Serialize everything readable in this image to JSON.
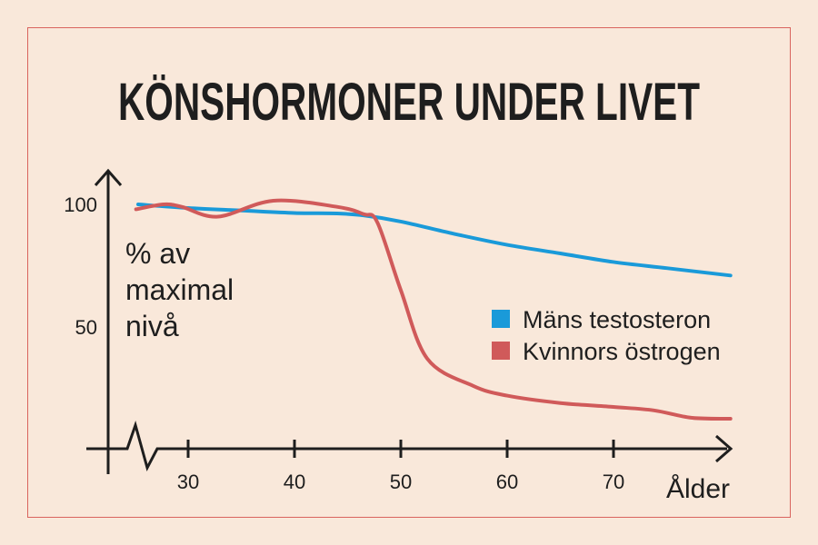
{
  "chart_data": {
    "type": "line",
    "title": "KÖNSHORMONER UNDER LIVET",
    "ylabel": [
      "% av",
      "maximal",
      "nivå"
    ],
    "xlabel": "Ålder",
    "xlim": [
      23,
      81
    ],
    "ylim": [
      0,
      100
    ],
    "x_ticks": [
      30,
      40,
      50,
      60,
      70
    ],
    "y_ticks": [
      50,
      100
    ],
    "grid": false,
    "legend_placement": "right",
    "axis_break": true,
    "series": [
      {
        "name": "Mäns testosteron",
        "color": "#1a9ad9",
        "x": [
          25.3,
          30,
          35,
          40,
          44,
          46.5,
          50,
          55,
          60,
          65,
          70,
          75,
          81
        ],
        "y": [
          100,
          98.5,
          97.5,
          96.5,
          96.3,
          95.5,
          93,
          88,
          83.5,
          80,
          76.5,
          74,
          71
        ]
      },
      {
        "name": "Kvinnors östrogen",
        "color": "#d05a5a",
        "x": [
          25.1,
          27.7,
          29.4,
          32.8,
          38,
          44,
          46.5,
          47.8,
          50,
          52.5,
          56.8,
          60,
          65,
          70,
          73.8,
          77.3,
          81
        ],
        "y": [
          98,
          100,
          99,
          95,
          101.5,
          99,
          96,
          92.6,
          65,
          37,
          26,
          22,
          19,
          17.4,
          16,
          13,
          12.6
        ]
      }
    ]
  }
}
